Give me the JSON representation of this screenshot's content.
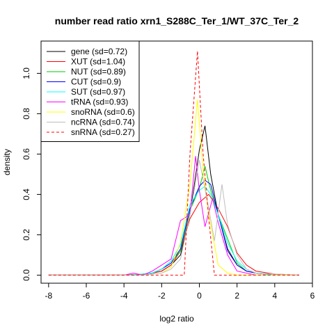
{
  "chart_data": {
    "type": "line",
    "title": "number read ratio xrn1_S288C_Ter_1/WT_37C_Ter_2",
    "xlabel": "log2 ratio",
    "ylabel": "density",
    "xlim": [
      -8.4,
      6
    ],
    "ylim": [
      -0.04,
      1.16
    ],
    "xticks": [
      -8,
      -6,
      -4,
      -2,
      0,
      2,
      4,
      6
    ],
    "yticks": [
      0.0,
      0.2,
      0.4,
      0.6,
      0.8,
      1.0
    ],
    "xtick_labels": [
      "-8",
      "-6",
      "-4",
      "-2",
      "0",
      "2",
      "4",
      "6"
    ],
    "ytick_labels": [
      "0.0",
      "0.2",
      "0.4",
      "0.6",
      "0.8",
      "1.0"
    ],
    "grid": false,
    "legend_position": "top-left",
    "series": [
      {
        "name": "gene (sd=0.72)",
        "color": "#000000",
        "dash": "solid",
        "x": [
          -8,
          -4,
          -3,
          -2.5,
          -2,
          -1.5,
          -1,
          -0.5,
          0,
          0.3,
          0.6,
          1,
          1.5,
          2,
          2.5,
          3,
          4,
          5.3
        ],
        "y": [
          0,
          0,
          0.005,
          0.01,
          0.02,
          0.05,
          0.1,
          0.3,
          0.62,
          0.74,
          0.5,
          0.3,
          0.13,
          0.05,
          0.02,
          0.01,
          0,
          0
        ]
      },
      {
        "name": "XUT (sd=1.04)",
        "color": "#ff0000",
        "dash": "solid",
        "x": [
          -8,
          -4,
          -3,
          -2.5,
          -2,
          -1.5,
          -1,
          -0.5,
          0,
          0.5,
          1,
          1.5,
          2,
          2.5,
          3,
          4,
          5.3
        ],
        "y": [
          0,
          0,
          0.005,
          0.01,
          0.02,
          0.05,
          0.12,
          0.28,
          0.36,
          0.4,
          0.33,
          0.24,
          0.11,
          0.05,
          0.02,
          0.005,
          0
        ]
      },
      {
        "name": "NUT (sd=0.89)",
        "color": "#00cd00",
        "dash": "solid",
        "x": [
          -8,
          -4,
          -3,
          -2.5,
          -2,
          -1.5,
          -1,
          -0.5,
          0,
          0.3,
          0.6,
          1,
          1.5,
          2,
          2.5,
          3,
          4,
          5.3
        ],
        "y": [
          0,
          0,
          0.005,
          0.01,
          0.03,
          0.06,
          0.12,
          0.32,
          0.43,
          0.54,
          0.42,
          0.3,
          0.18,
          0.06,
          0.02,
          0.01,
          0,
          0
        ]
      },
      {
        "name": "CUT (sd=0.9)",
        "color": "#0000ff",
        "dash": "solid",
        "x": [
          -8,
          -4,
          -3,
          -2.5,
          -2,
          -1.5,
          -1,
          -0.5,
          0,
          0.3,
          0.6,
          1,
          1.5,
          2,
          2.5,
          3,
          4,
          5.3
        ],
        "y": [
          0,
          0,
          0.005,
          0.01,
          0.03,
          0.06,
          0.13,
          0.33,
          0.44,
          0.47,
          0.45,
          0.3,
          0.12,
          0.05,
          0.02,
          0.01,
          0,
          0
        ]
      },
      {
        "name": "SUT (sd=0.97)",
        "color": "#00ffff",
        "dash": "solid",
        "x": [
          -8,
          -4,
          -3,
          -2.5,
          -2,
          -1.5,
          -1,
          -0.5,
          0,
          0.3,
          0.6,
          1,
          1.5,
          2,
          2.5,
          3,
          4,
          5.3
        ],
        "y": [
          0,
          0,
          0.005,
          0.01,
          0.03,
          0.07,
          0.15,
          0.35,
          0.42,
          0.44,
          0.4,
          0.3,
          0.16,
          0.07,
          0.03,
          0.01,
          0,
          0
        ]
      },
      {
        "name": "tRNA (sd=0.93)",
        "color": "#ff00ff",
        "dash": "solid",
        "x": [
          -8,
          -4,
          -3.5,
          -3,
          -2.5,
          -2,
          -1.5,
          -1,
          -0.5,
          -0.2,
          0,
          0.3,
          0.7,
          1,
          1.5,
          2,
          3,
          5.3
        ],
        "y": [
          0,
          0,
          0.01,
          0,
          0.02,
          0.05,
          0.08,
          0.27,
          0.3,
          0.59,
          0.42,
          0.24,
          0.38,
          0.26,
          0.1,
          0.02,
          0,
          0
        ]
      },
      {
        "name": "snoRNA (sd=0.6)",
        "color": "#ffff00",
        "dash": "solid",
        "x": [
          -8,
          -4,
          -3,
          -2,
          -1.5,
          -1,
          -0.5,
          -0.1,
          0.2,
          0.5,
          1,
          1.5,
          2,
          5.3
        ],
        "y": [
          0,
          0,
          0,
          0.01,
          0.04,
          0.16,
          0.45,
          0.87,
          0.52,
          0.3,
          0.05,
          0.01,
          0,
          0
        ]
      },
      {
        "name": "ncRNA (sd=0.74)",
        "color": "#bebebe",
        "dash": "solid",
        "x": [
          -8,
          -4,
          -3,
          -2,
          -1.5,
          -1,
          -0.5,
          0,
          0.5,
          0.8,
          1.2,
          1.5,
          2,
          2.5,
          3,
          5.3
        ],
        "y": [
          0,
          0,
          0,
          0.01,
          0.03,
          0.08,
          0.3,
          0.57,
          0.33,
          0.17,
          0.45,
          0.25,
          0.1,
          0.03,
          0.01,
          0
        ]
      },
      {
        "name": "snRNA (sd=0.27)",
        "color": "#ff0000",
        "dash": "dashed",
        "x": [
          -8,
          -1.2,
          -0.8,
          -0.5,
          -0.1,
          0.2,
          0.5,
          0.8,
          1.2,
          5.3
        ],
        "y": [
          0,
          0,
          0,
          0.6,
          1.11,
          0.6,
          0.28,
          0,
          0,
          0
        ]
      }
    ]
  }
}
